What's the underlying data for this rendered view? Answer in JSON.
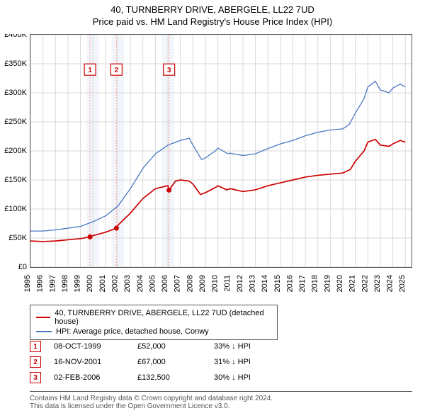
{
  "title_line1": "40, TURNBERRY DRIVE, ABERGELE, LL22 7UD",
  "title_line2": "Price paid vs. HM Land Registry's House Price Index (HPI)",
  "chart": {
    "type": "line",
    "background_color": "#ffffff",
    "grid_color": "#d9d9d9",
    "shade_color": "#f2f6fb",
    "line_width_series1": 1.7,
    "line_width_series2": 1.3,
    "x": {
      "min": 1995,
      "max": 2025.5,
      "ticks": [
        1995,
        1996,
        1997,
        1998,
        1999,
        2000,
        2001,
        2002,
        2003,
        2004,
        2005,
        2006,
        2007,
        2008,
        2009,
        2010,
        2011,
        2012,
        2013,
        2014,
        2015,
        2016,
        2017,
        2018,
        2019,
        2020,
        2021,
        2022,
        2023,
        2024,
        2025
      ],
      "labels": [
        "1995",
        "1996",
        "1997",
        "1998",
        "1999",
        "2000",
        "2001",
        "2002",
        "2003",
        "2004",
        "2005",
        "2006",
        "2007",
        "2008",
        "2009",
        "2010",
        "2011",
        "2012",
        "2013",
        "2014",
        "2015",
        "2016",
        "2017",
        "2018",
        "2019",
        "2020",
        "2021",
        "2022",
        "2023",
        "2024",
        "2025"
      ]
    },
    "y": {
      "min": 0,
      "max": 400000,
      "ticks": [
        0,
        50000,
        100000,
        150000,
        200000,
        250000,
        300000,
        350000,
        400000
      ],
      "labels": [
        "£0",
        "£50K",
        "£100K",
        "£150K",
        "£200K",
        "£250K",
        "£300K",
        "£350K",
        "£400K"
      ]
    },
    "shade_ranges": [
      [
        1999.5,
        2000.5
      ],
      [
        2001.5,
        2002.5
      ],
      [
        2005.5,
        2006.5
      ]
    ],
    "series": [
      {
        "name": "40, TURNBERRY DRIVE, ABERGELE, LL22 7UD (detached house)",
        "color": "#cc0000",
        "points": [
          [
            1995,
            45000
          ],
          [
            1996,
            44000
          ],
          [
            1997,
            45000
          ],
          [
            1998,
            47000
          ],
          [
            1999,
            49000
          ],
          [
            1999.77,
            52000
          ],
          [
            2000,
            54000
          ],
          [
            2001,
            60000
          ],
          [
            2001.88,
            67000
          ],
          [
            2002,
            72000
          ],
          [
            2003,
            93000
          ],
          [
            2004,
            118000
          ],
          [
            2005,
            135000
          ],
          [
            2006,
            140000
          ],
          [
            2006.09,
            132500
          ],
          [
            2006.6,
            148000
          ],
          [
            2007,
            150000
          ],
          [
            2007.7,
            148000
          ],
          [
            2008,
            143000
          ],
          [
            2008.6,
            125000
          ],
          [
            2009,
            128000
          ],
          [
            2009.8,
            137000
          ],
          [
            2010,
            140000
          ],
          [
            2010.7,
            133000
          ],
          [
            2011,
            135000
          ],
          [
            2012,
            130000
          ],
          [
            2013,
            133000
          ],
          [
            2014,
            140000
          ],
          [
            2015,
            145000
          ],
          [
            2016,
            150000
          ],
          [
            2017,
            155000
          ],
          [
            2018,
            158000
          ],
          [
            2019,
            160000
          ],
          [
            2020,
            162000
          ],
          [
            2020.6,
            168000
          ],
          [
            2021,
            182000
          ],
          [
            2021.7,
            200000
          ],
          [
            2022,
            215000
          ],
          [
            2022.6,
            220000
          ],
          [
            2023,
            210000
          ],
          [
            2023.7,
            208000
          ],
          [
            2024,
            212000
          ],
          [
            2024.6,
            218000
          ],
          [
            2025,
            215000
          ]
        ]
      },
      {
        "name": "HPI: Average price, detached house, Conwy",
        "color": "#4a78c4",
        "points": [
          [
            1995,
            62000
          ],
          [
            1996,
            62000
          ],
          [
            1997,
            64000
          ],
          [
            1998,
            67000
          ],
          [
            1999,
            70000
          ],
          [
            2000,
            78000
          ],
          [
            2001,
            88000
          ],
          [
            2002,
            105000
          ],
          [
            2003,
            135000
          ],
          [
            2004,
            170000
          ],
          [
            2005,
            195000
          ],
          [
            2006,
            210000
          ],
          [
            2007,
            218000
          ],
          [
            2007.7,
            222000
          ],
          [
            2008,
            210000
          ],
          [
            2008.7,
            185000
          ],
          [
            2009,
            188000
          ],
          [
            2009.8,
            200000
          ],
          [
            2010,
            205000
          ],
          [
            2010.8,
            195000
          ],
          [
            2011,
            196000
          ],
          [
            2012,
            192000
          ],
          [
            2013,
            195000
          ],
          [
            2014,
            204000
          ],
          [
            2015,
            212000
          ],
          [
            2016,
            218000
          ],
          [
            2017,
            226000
          ],
          [
            2018,
            232000
          ],
          [
            2019,
            236000
          ],
          [
            2020,
            238000
          ],
          [
            2020.5,
            245000
          ],
          [
            2021,
            265000
          ],
          [
            2021.7,
            290000
          ],
          [
            2022,
            310000
          ],
          [
            2022.6,
            320000
          ],
          [
            2023,
            305000
          ],
          [
            2023.7,
            300000
          ],
          [
            2024,
            308000
          ],
          [
            2024.6,
            315000
          ],
          [
            2025,
            310000
          ]
        ]
      }
    ],
    "event_lines": [
      1999.77,
      2001.88,
      2006.09
    ],
    "event_markers": [
      {
        "num": "1",
        "x": 1999.77,
        "label_y": 340000,
        "dot": [
          1999.77,
          52000
        ]
      },
      {
        "num": "2",
        "x": 2001.88,
        "label_y": 340000,
        "dot": [
          2001.88,
          67000
        ]
      },
      {
        "num": "3",
        "x": 2006.09,
        "label_y": 340000,
        "dot": [
          2006.09,
          132500
        ]
      }
    ]
  },
  "legend": {
    "series1_color": "#cc0000",
    "series2_color": "#4a78c4",
    "series1_label": "40, TURNBERRY DRIVE, ABERGELE, LL22 7UD (detached house)",
    "series2_label": "HPI: Average price, detached house, Conwy"
  },
  "events": [
    {
      "num": "1",
      "date": "08-OCT-1999",
      "price": "£52,000",
      "delta": "33% ↓ HPI"
    },
    {
      "num": "2",
      "date": "16-NOV-2001",
      "price": "£67,000",
      "delta": "31% ↓ HPI"
    },
    {
      "num": "3",
      "date": "02-FEB-2006",
      "price": "£132,500",
      "delta": "30% ↓ HPI"
    }
  ],
  "footer_line1": "Contains HM Land Registry data © Crown copyright and database right 2024.",
  "footer_line2": "This data is licensed under the Open Government Licence v3.0."
}
